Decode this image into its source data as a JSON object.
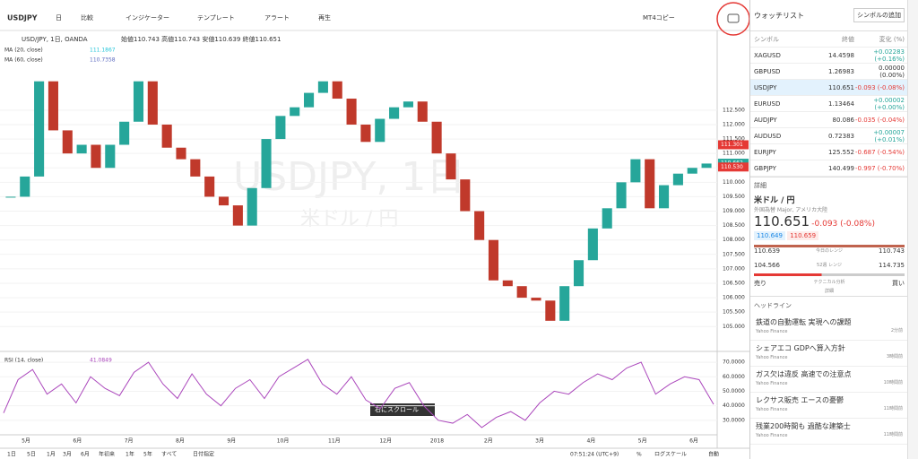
{
  "toolbar": {
    "symbol": "USDJPY",
    "items": [
      "日",
      "比較",
      "インジケーター",
      "テンプレート",
      "アラート",
      "再生"
    ],
    "right": [
      "MT4コピー"
    ]
  },
  "chart": {
    "legend": {
      "main": "USD/JPY, 1日, OANDA",
      "ohlc": "始値110.743 高値110.743 安値110.639 終値110.651",
      "ma20": "MA (20, close)",
      "ma20_value": "111.1867",
      "ma60": "MA (60, close)",
      "ma60_value": "110.7358",
      "rsi": "RSI (14, close)",
      "rsi_value": "41.0849"
    },
    "watermark": "USDJPY, 1日",
    "watermark_sub": "米ドル / 円",
    "price": {
      "color_up": "#26a69a",
      "color_down": "#c0392b",
      "ylim": [
        104.2,
        115.2
      ],
      "yticks": [
        {
          "value": 105,
          "label": "105.000"
        },
        {
          "value": 105.5,
          "label": "105.500"
        },
        {
          "value": 106,
          "label": "106.000"
        },
        {
          "value": 106.5,
          "label": "106.500"
        },
        {
          "value": 107,
          "label": "107.000"
        },
        {
          "value": 107.5,
          "label": "107.500"
        },
        {
          "value": 108,
          "label": "108.000"
        },
        {
          "value": 108.5,
          "label": "108.500"
        },
        {
          "value": 109,
          "label": "109.000"
        },
        {
          "value": 109.5,
          "label": "109.500"
        },
        {
          "value": 110,
          "label": "110.000"
        },
        {
          "value": 110.5,
          "label": "110.500"
        },
        {
          "value": 111,
          "label": "111.000"
        },
        {
          "value": 111.5,
          "label": "111.500"
        },
        {
          "value": 112,
          "label": "112.000"
        },
        {
          "value": 112.5,
          "label": "112.500"
        }
      ],
      "values": [
        109.5,
        110.2,
        113.5,
        111.8,
        111.0,
        111.3,
        110.5,
        111.3,
        112.1,
        113.5,
        112.0,
        111.2,
        110.8,
        110.2,
        109.5,
        109.2,
        108.5,
        109.8,
        111.5,
        112.3,
        112.6,
        113.1,
        113.5,
        112.9,
        112.0,
        111.4,
        112.2,
        112.6,
        112.8,
        112.1,
        111.0,
        110.1,
        109.0,
        108.0,
        106.6,
        106.4,
        106.0,
        105.9,
        105.2,
        106.4,
        107.3,
        108.4,
        109.1,
        110.0,
        110.8,
        109.1,
        109.9,
        110.3,
        110.5,
        110.65
      ],
      "markers": [
        {
          "value": 111.301,
          "label": "111.301",
          "color": "#e53935"
        },
        {
          "value": 110.662,
          "label": "110.662",
          "color": "#26a69a"
        },
        {
          "value": 110.53,
          "label": "110.530",
          "color": "#e53935"
        }
      ]
    },
    "rsi": {
      "color": "#ab47bc",
      "ylim": [
        20,
        73.75
      ],
      "yticks": [
        {
          "value": 30,
          "label": "30.0000"
        },
        {
          "value": 40,
          "label": "40.0000"
        },
        {
          "value": 50,
          "label": "50.0000"
        },
        {
          "value": 60,
          "label": "60.0000"
        },
        {
          "value": 70,
          "label": "70.0000"
        }
      ],
      "values": [
        35,
        58,
        65,
        48,
        55,
        42,
        60,
        52,
        47,
        63,
        70,
        55,
        45,
        62,
        48,
        40,
        52,
        58,
        45,
        60,
        66,
        72,
        55,
        48,
        60,
        44,
        38,
        52,
        56,
        40,
        30,
        28,
        34,
        25,
        32,
        36,
        30,
        42,
        50,
        48,
        56,
        62,
        58,
        66,
        70,
        48,
        55,
        60,
        58,
        41
      ]
    },
    "time_labels": [
      "5月",
      "6月",
      "7月",
      "8月",
      "9月",
      "10月",
      "11月",
      "12月",
      "2018",
      "2月",
      "3月",
      "4月",
      "5月",
      "6月"
    ],
    "scroll_hint": "右にスクロール"
  },
  "bottom_bar": {
    "ranges": [
      "1日",
      "5日",
      "1月",
      "3月",
      "6月",
      "年初来",
      "1年",
      "5年",
      "すべて",
      "日付指定"
    ],
    "clock": "07:51:24 (UTC+9)",
    "right": [
      "%",
      "ログスケール",
      "自動"
    ]
  },
  "watchlist": {
    "title": "ウォッチリスト",
    "add": "シンボルの追加",
    "headers": [
      "シンボル",
      "終値",
      "変化 (%)"
    ],
    "rows": [
      [
        "XAGUSD",
        "14.4598",
        "+0.02283 (+0.16%)"
      ],
      [
        "GBPUSD",
        "1.26983",
        "0.00000 (0.00%)"
      ],
      [
        "USDJPY",
        "110.651",
        "-0.093 (-0.08%)"
      ],
      [
        "EURUSD",
        "1.13464",
        "+0.00002 (+0.00%)"
      ],
      [
        "AUDJPY",
        "80.086",
        "-0.035 (-0.04%)"
      ],
      [
        "AUDUSD",
        "0.72383",
        "+0.00007 (+0.01%)"
      ],
      [
        "EURJPY",
        "125.552",
        "-0.687 (-0.54%)"
      ],
      [
        "GBPJPY",
        "140.499",
        "-0.997 (-0.70%)"
      ]
    ]
  },
  "detail": {
    "title": "詳細",
    "name": "米ドル / 円",
    "sub": "外国為替 Major, アメリカ大陸",
    "price": "110.651",
    "change": "-0.093 (-0.08%)",
    "bid": "110.649",
    "ask": "110.659",
    "day_low": "110.639",
    "day_label": "今日のレンジ",
    "day_high": "110.743",
    "w_low": "104.566",
    "w_label": "52週 レンジ",
    "w_high": "114.735",
    "sell": "売り",
    "tech": "テクニカル分析",
    "buy": "買い",
    "more": "詳細"
  },
  "headlines": {
    "title": "ヘッドライン",
    "items": [
      {
        "title": "鉄道の自動運転 実現への課題",
        "source": "Yahoo Finance",
        "time": "2分前"
      },
      {
        "title": "シェアエコ GDPへ算入方針",
        "source": "Yahoo Finance",
        "time": "3時間前"
      },
      {
        "title": "ガス欠は違反 高速での注意点",
        "source": "Yahoo Finance",
        "time": "10時間前"
      },
      {
        "title": "レクサス販売 エースの憂鬱",
        "source": "Yahoo Finance",
        "time": "11時間前"
      },
      {
        "title": "残業200時間も 過酷な建築士",
        "source": "Yahoo Finance",
        "time": "11時間前"
      }
    ]
  }
}
